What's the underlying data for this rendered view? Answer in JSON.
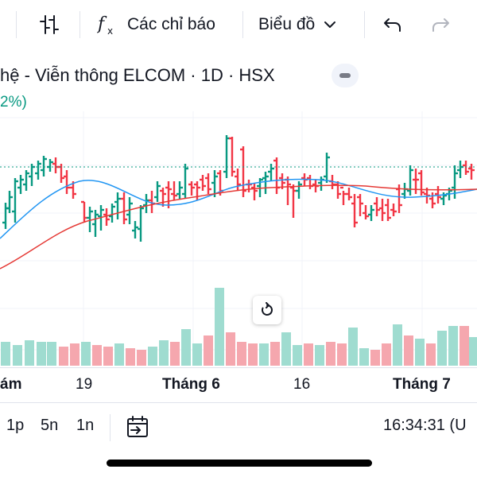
{
  "toolbar": {
    "indicators_label": "Các chỉ báo",
    "chart_type_label": "Biểu đồ"
  },
  "legend": {
    "title": "hệ - Viễn thông ELCOM · 1D · HSX",
    "change": "2%)"
  },
  "time_axis": {
    "labels": [
      "ám",
      "19",
      "Tháng 6",
      "16",
      "Tháng 7"
    ]
  },
  "bottom_bar": {
    "ranges": [
      "1p",
      "5n",
      "1n"
    ],
    "clock": "16:34:31 (U"
  },
  "colors": {
    "up": "#089981",
    "down": "#f23645",
    "ma_fast": "#2196f3",
    "ma_slow": "#e53935",
    "volume_up": "#9fdcd0",
    "volume_down": "#f5a7ae"
  },
  "icons": [
    "bar-style-icon",
    "fx-icon",
    "chevron-down-icon",
    "undo-icon",
    "redo-icon",
    "collapse-icon",
    "reset-chart-icon",
    "goto-date-icon"
  ],
  "chart_data": {
    "type": "bar",
    "subtype": "ohlc-price-chart-with-volume",
    "x_tick_labels": [
      "ám",
      "19",
      "Tháng 6",
      "16",
      "Tháng 7"
    ],
    "last_price_line": "dotted",
    "grid": true,
    "series": [
      {
        "name": "",
        "kind": "ohlc"
      },
      {
        "name": "",
        "kind": "moving-average"
      },
      {
        "name": "",
        "kind": "moving-average"
      },
      {
        "name": "",
        "kind": "volume"
      }
    ]
  }
}
